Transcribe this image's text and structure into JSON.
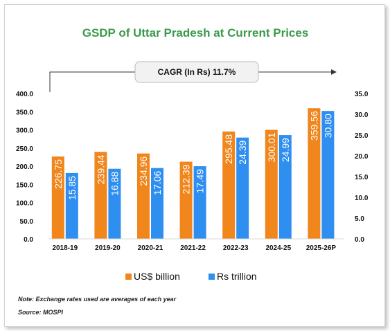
{
  "chart_data": {
    "type": "bar",
    "title": "GSDP of Uttar Pradesh at Current Prices",
    "annotation": "CAGR (In Rs) 11.7%",
    "categories": [
      "2018-19",
      "2019-20",
      "2020-21",
      "2021-22",
      "2022-23",
      "2024-25",
      "2025-26P"
    ],
    "series": [
      {
        "name": "US$ billion",
        "axis": "left",
        "color": "#f0861c",
        "values": [
          226.75,
          239.44,
          234.96,
          212.39,
          295.48,
          300.01,
          359.56
        ],
        "labels": [
          "226.75",
          "239.44",
          "234.96",
          "212.39",
          "295.48",
          "300.01",
          "359.56"
        ]
      },
      {
        "name": "Rs trillion",
        "axis": "right",
        "color": "#2f8ff0",
        "values": [
          15.85,
          16.88,
          17.06,
          17.49,
          24.39,
          24.99,
          30.8
        ],
        "labels": [
          "15.85",
          "16.88",
          "17.06",
          "17.49",
          "24.39",
          "24.99",
          "30.80"
        ]
      }
    ],
    "y_left": {
      "min": 0,
      "max": 400,
      "ticks": [
        "0.0",
        "50.0",
        "100.0",
        "150.0",
        "200.0",
        "250.0",
        "300.0",
        "350.0",
        "400.0"
      ]
    },
    "y_right": {
      "min": 0,
      "max": 35,
      "ticks": [
        "0.0",
        "5.0",
        "10.0",
        "15.0",
        "20.0",
        "25.0",
        "30.0",
        "35.0"
      ]
    },
    "legend_position": "bottom",
    "grid": false
  },
  "notes": {
    "note": "Note: Exchange rates used are averages of each year",
    "source": "Source: MOSPI"
  }
}
